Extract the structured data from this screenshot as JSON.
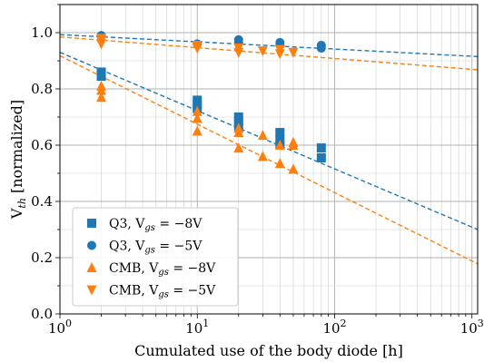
{
  "chart_data": {
    "type": "scatter",
    "xscale": "log",
    "xlim": [
      1,
      1100
    ],
    "ylim": [
      0,
      1.1
    ],
    "xlabel": "Cumulated use of the body diode [h]",
    "ylabel_main": "V",
    "ylabel_sub": "th",
    "ylabel_rest": " [normalized]",
    "grid": true,
    "legend_position": "lower-left",
    "x_ticks": [
      {
        "value": 1,
        "base": "10",
        "exp": "0"
      },
      {
        "value": 10,
        "base": "10",
        "exp": "1"
      },
      {
        "value": 100,
        "base": "10",
        "exp": "2"
      },
      {
        "value": 1000,
        "base": "10",
        "exp": "3"
      }
    ],
    "y_ticks": [
      {
        "value": 0.0,
        "label": "0.0"
      },
      {
        "value": 0.2,
        "label": "0.2"
      },
      {
        "value": 0.4,
        "label": "0.4"
      },
      {
        "value": 0.6,
        "label": "0.6"
      },
      {
        "value": 0.8,
        "label": "0.8"
      },
      {
        "value": 1.0,
        "label": "1.0"
      }
    ],
    "series": [
      {
        "name": "Q3, V",
        "name_sub": "gs",
        "name_rest": " = −8V",
        "marker": "square",
        "color": "#1f77b4",
        "points": [
          [
            2,
            0.845
          ],
          [
            2,
            0.86
          ],
          [
            10,
            0.76
          ],
          [
            10,
            0.745
          ],
          [
            10,
            0.73
          ],
          [
            20,
            0.7
          ],
          [
            20,
            0.685
          ],
          [
            20,
            0.665
          ],
          [
            40,
            0.645
          ],
          [
            40,
            0.62
          ],
          [
            40,
            0.6
          ],
          [
            80,
            0.59
          ],
          [
            80,
            0.555
          ]
        ],
        "fit": [
          [
            1,
            0.93
          ],
          [
            1100,
            0.3
          ]
        ]
      },
      {
        "name": "Q3, V",
        "name_sub": "gs",
        "name_rest": " = −5V",
        "marker": "circle",
        "color": "#1f77b4",
        "points": [
          [
            2,
            0.99
          ],
          [
            10,
            0.96
          ],
          [
            20,
            0.975
          ],
          [
            20,
            0.965
          ],
          [
            40,
            0.965
          ],
          [
            40,
            0.955
          ],
          [
            80,
            0.955
          ],
          [
            80,
            0.945
          ]
        ],
        "fit": [
          [
            1,
            0.993
          ],
          [
            1100,
            0.915
          ]
        ]
      },
      {
        "name": "CMB, V",
        "name_sub": "gs",
        "name_rest": " = −8V",
        "marker": "triangle-up",
        "color": "#ff7f0e",
        "points": [
          [
            2,
            0.81
          ],
          [
            2,
            0.795
          ],
          [
            2,
            0.77
          ],
          [
            10,
            0.72
          ],
          [
            10,
            0.695
          ],
          [
            10,
            0.65
          ],
          [
            20,
            0.66
          ],
          [
            20,
            0.645
          ],
          [
            20,
            0.59
          ],
          [
            30,
            0.635
          ],
          [
            30,
            0.56
          ],
          [
            40,
            0.6
          ],
          [
            40,
            0.535
          ],
          [
            50,
            0.61
          ],
          [
            50,
            0.6
          ],
          [
            50,
            0.515
          ]
        ],
        "fit": [
          [
            1,
            0.918
          ],
          [
            1100,
            0.178
          ]
        ]
      },
      {
        "name": "CMB, V",
        "name_sub": "gs",
        "name_rest": " = −5V",
        "marker": "triangle-down",
        "color": "#ff7f0e",
        "points": [
          [
            2,
            0.98
          ],
          [
            2,
            0.97
          ],
          [
            2,
            0.96
          ],
          [
            10,
            0.955
          ],
          [
            10,
            0.945
          ],
          [
            20,
            0.945
          ],
          [
            20,
            0.93
          ],
          [
            30,
            0.935
          ],
          [
            40,
            0.94
          ],
          [
            40,
            0.925
          ],
          [
            50,
            0.93
          ]
        ],
        "fit": [
          [
            1,
            0.985
          ],
          [
            1100,
            0.868
          ]
        ]
      }
    ]
  }
}
